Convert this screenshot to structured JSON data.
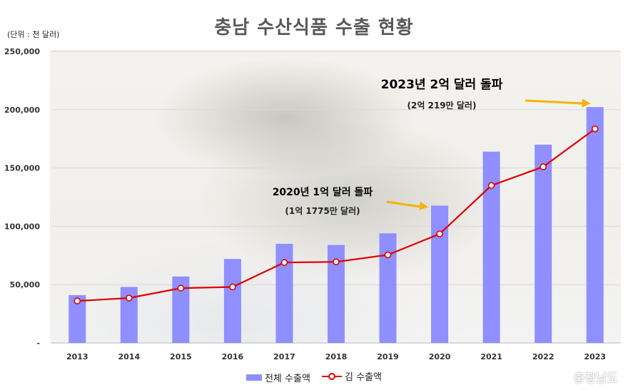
{
  "chart_data": {
    "type": "bar",
    "title": "충남 수산식품 수출 현황",
    "unit_label": "(단위 : 천 달러)",
    "categories": [
      "2013",
      "2014",
      "2015",
      "2016",
      "2017",
      "2018",
      "2019",
      "2020",
      "2021",
      "2022",
      "2023"
    ],
    "series": [
      {
        "name": "전체 수출액",
        "type": "bar",
        "color": "#8f8fff",
        "values": [
          41000,
          48000,
          57000,
          72000,
          85000,
          84000,
          94000,
          117750,
          164000,
          170000,
          202190
        ]
      },
      {
        "name": "김 수출액",
        "type": "line",
        "color": "#e00000",
        "values": [
          36000,
          38500,
          47000,
          48000,
          69000,
          69500,
          75500,
          93500,
          135000,
          151000,
          183500
        ]
      }
    ],
    "ylim": [
      0,
      250000
    ],
    "yticks": [
      0,
      50000,
      100000,
      150000,
      200000,
      250000
    ],
    "ytick_labels": [
      "-",
      "50,000",
      "100,000",
      "150,000",
      "200,000",
      "250,000"
    ],
    "grid": true,
    "legend_position": "bottom",
    "annotations": [
      {
        "category": "2020",
        "text": "2020년 1억 달러 돌파",
        "subtext": "(1억 1775만 달러)"
      },
      {
        "category": "2023",
        "text": "2023년 2억 달러 돌파",
        "subtext": "(2억 219만 달러)"
      }
    ]
  },
  "watermark": "충청남도"
}
